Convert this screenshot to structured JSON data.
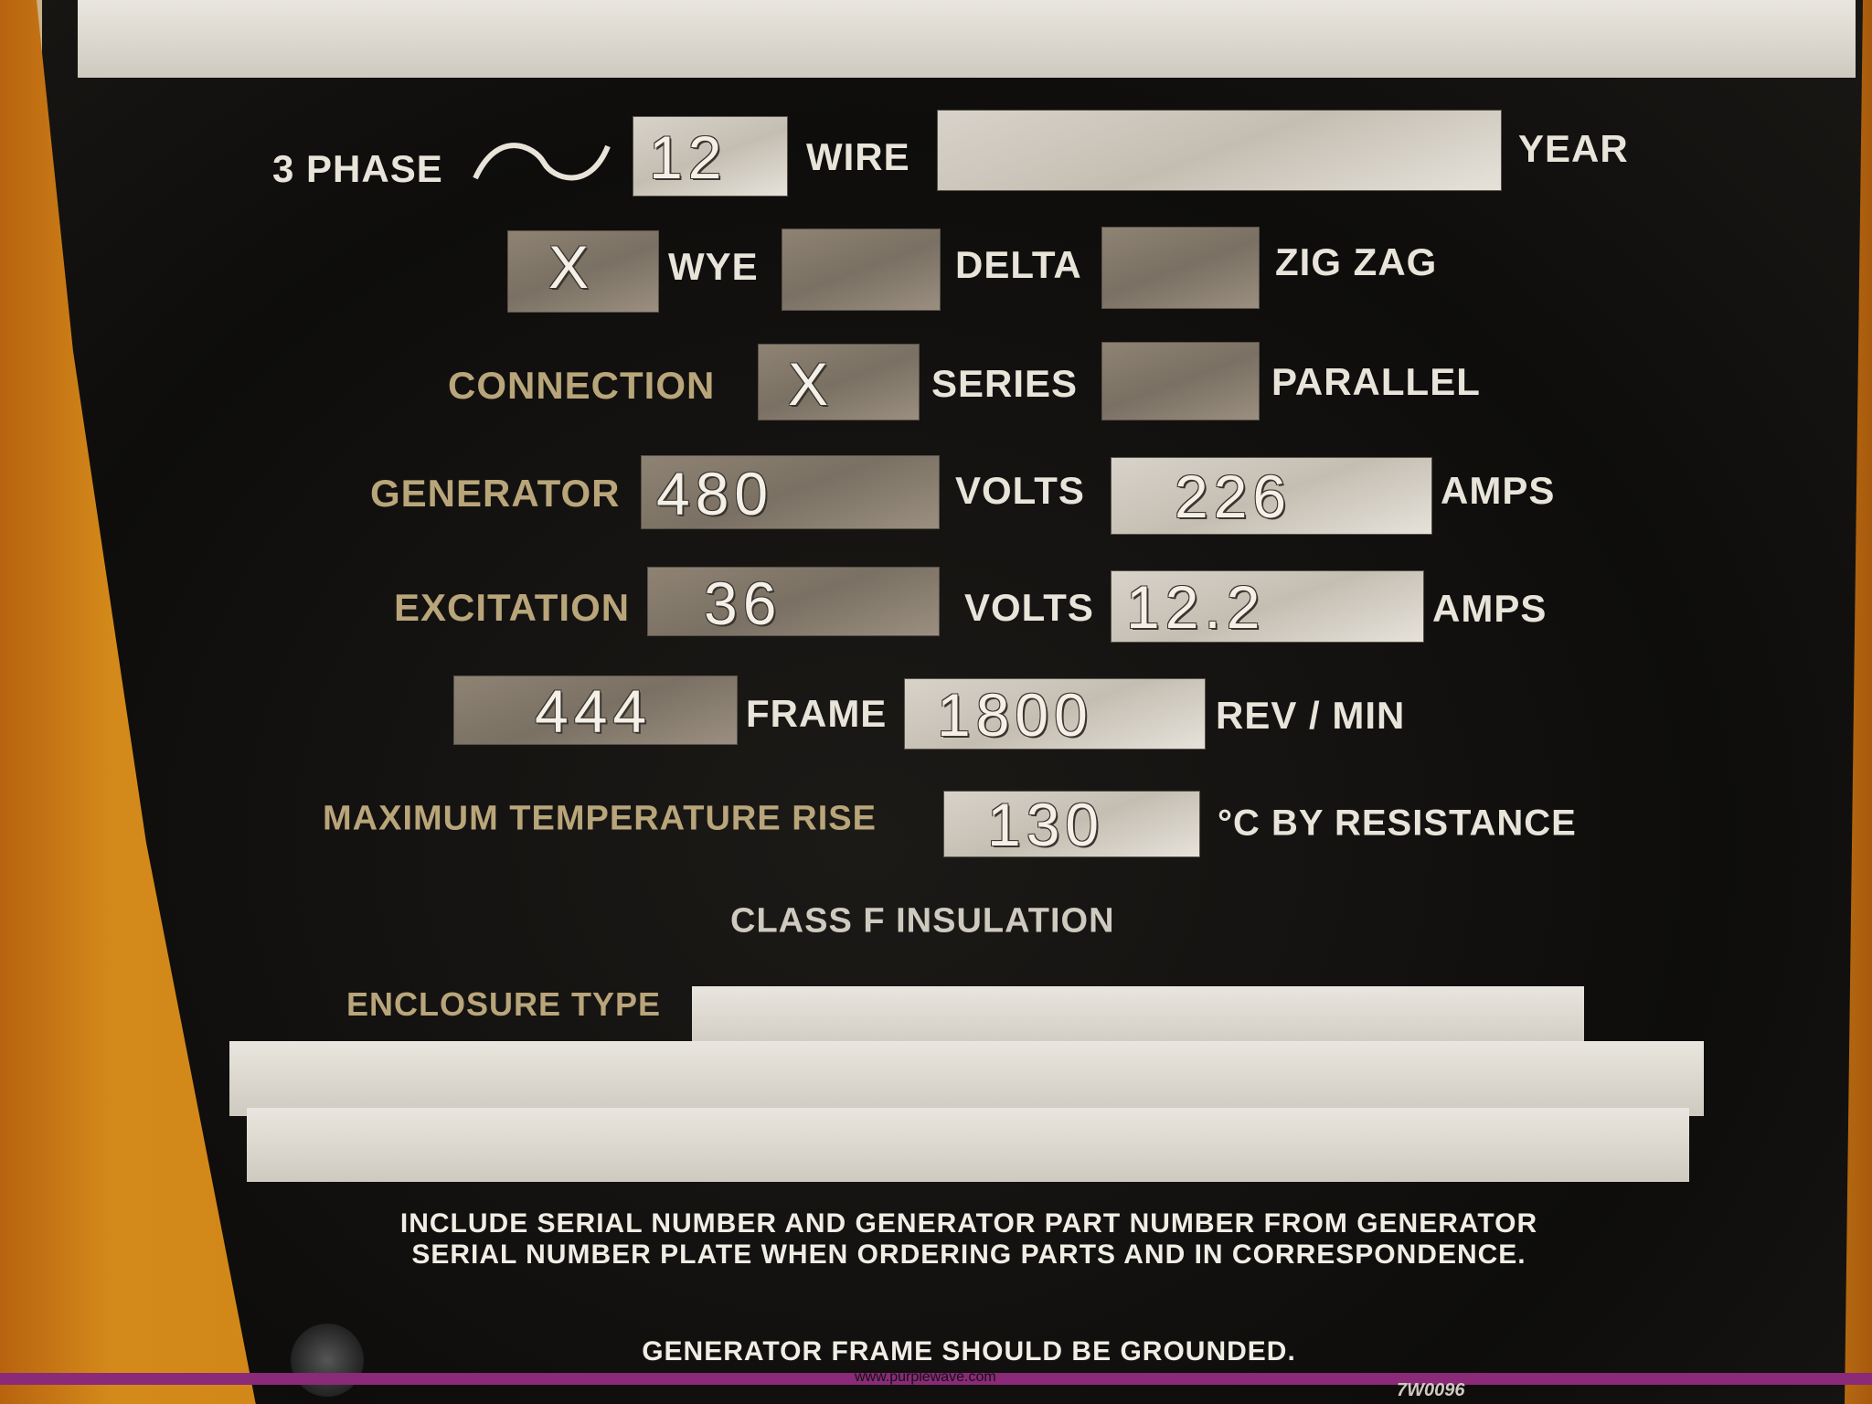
{
  "plate": {
    "phase_label": "3 PHASE",
    "sine_icon": "sine-wave-icon",
    "wire_value": "12",
    "wire_label": "WIRE",
    "year_value": "",
    "year_label": "YEAR",
    "wye_value": "X",
    "wye_label": "WYE",
    "delta_value": "",
    "delta_label": "DELTA",
    "zigzag_value": "",
    "zigzag_label": "ZIG ZAG",
    "connection_label": "CONNECTION",
    "series_value": "X",
    "series_label": "SERIES",
    "parallel_value": "",
    "parallel_label": "PARALLEL",
    "generator_label": "GENERATOR",
    "generator_volts": "480",
    "volts_label": "VOLTS",
    "generator_amps": "226",
    "amps_label": "AMPS",
    "excitation_label": "EXCITATION",
    "excitation_volts": "36",
    "excitation_amps": "12.2",
    "frame_value": "444",
    "frame_label": "FRAME",
    "rpm_value": "1800",
    "rpm_label": "REV / MIN",
    "temp_label": "MAXIMUM TEMPERATURE RISE",
    "temp_value": "130",
    "temp_unit": "°C BY RESISTANCE",
    "insulation": "CLASS F INSULATION",
    "enclosure_label": "ENCLOSURE TYPE",
    "enclosure_value": "",
    "note1": "INCLUDE SERIAL NUMBER AND GENERATOR PART NUMBER FROM GENERATOR SERIAL NUMBER PLATE WHEN ORDERING PARTS AND IN CORRESPONDENCE.",
    "note2": "GENERATOR FRAME SHOULD BE GROUNDED.",
    "part_code": "7W0096"
  },
  "watermark": "www.purplewave.com",
  "colors": {
    "plate": "#0e0d0c",
    "housing": "#c87a14",
    "watermark_bar": "#8a2a78"
  }
}
